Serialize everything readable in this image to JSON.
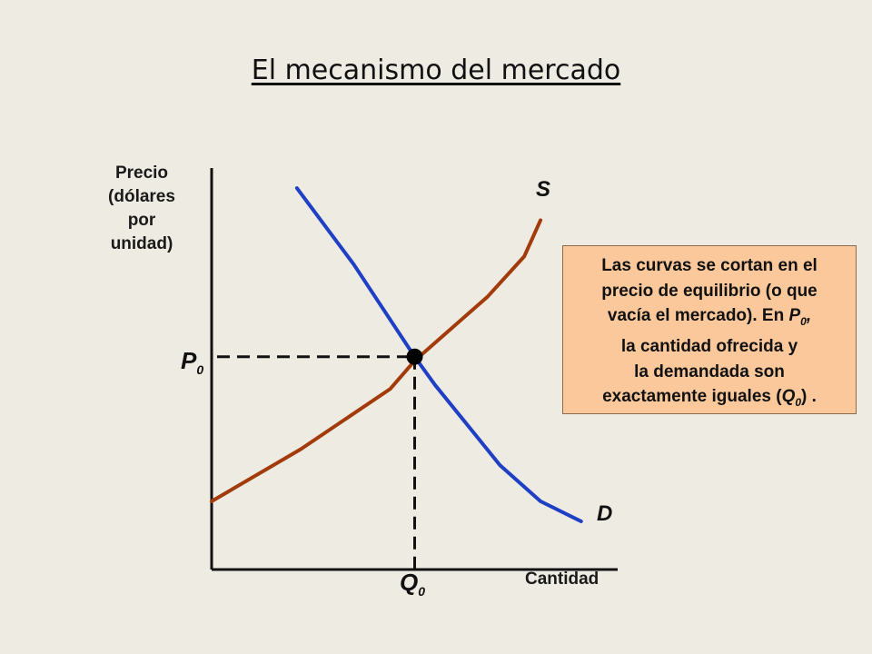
{
  "title": "El mecanismo del mercado",
  "chart_data": {
    "type": "line",
    "ylabel": "Precio\n(dólares\npor\nunidad)",
    "xlabel": "Cantidad",
    "xlim": [
      0,
      10
    ],
    "ylim": [
      0,
      10
    ],
    "series": [
      {
        "name": "S",
        "color": "#a33a0a",
        "points": [
          [
            0,
            1.7
          ],
          [
            2.2,
            3.0
          ],
          [
            4.4,
            4.5
          ],
          [
            5.0,
            5.2
          ],
          [
            6.8,
            6.8
          ],
          [
            7.7,
            7.8
          ],
          [
            8.1,
            8.7
          ]
        ]
      },
      {
        "name": "D",
        "color": "#1f3fc4",
        "points": [
          [
            2.1,
            9.5
          ],
          [
            3.5,
            7.6
          ],
          [
            5.0,
            5.3
          ],
          [
            5.5,
            4.6
          ],
          [
            7.1,
            2.6
          ],
          [
            8.1,
            1.7
          ],
          [
            9.1,
            1.2
          ]
        ]
      }
    ],
    "equilibrium": {
      "x": 5.0,
      "y": 5.3,
      "x_label": "Q",
      "x_label_sub": "0",
      "y_label": "P",
      "y_label_sub": "0"
    }
  },
  "annotation": {
    "line1": "Las curvas se cortan en el",
    "line2": "precio de equilibrio (o que",
    "line3_pre": "vacía el mercado). En ",
    "line3_var": "P",
    "line3_sub": "0",
    "line3_post": ",",
    "line4": "la cantidad ofrecida y",
    "line5": "la demandada son",
    "line6_pre": "exactamente iguales (",
    "line6_var": "Q",
    "line6_sub": "0",
    "line6_post": ") ."
  }
}
